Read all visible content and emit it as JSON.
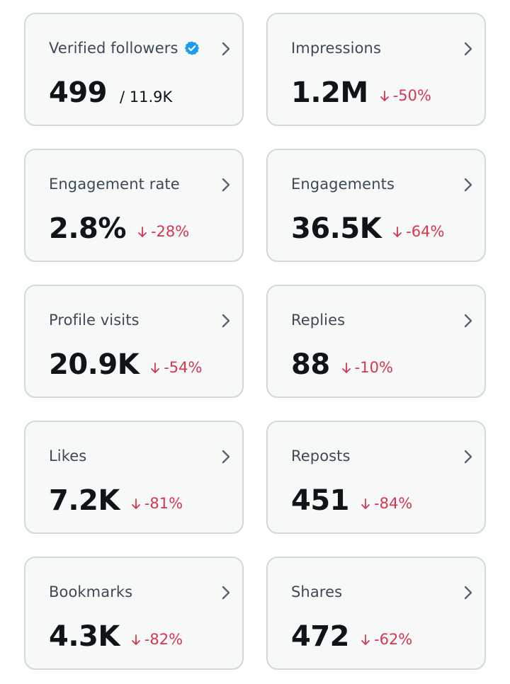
{
  "colors": {
    "card_bg": "#f7f9f9",
    "card_border": "#cfd9de",
    "label": "#3c4a55",
    "value": "#0f1419",
    "negative": "#d63650",
    "verified": "#1d9bf0",
    "chevron": "#536471"
  },
  "cards": [
    {
      "label": "Verified followers",
      "icon": "verified-badge-icon",
      "value": "499",
      "total": "/ 11.9K"
    },
    {
      "label": "Impressions",
      "value": "1.2M",
      "change": "-50%",
      "change_icon": "arrow-down-icon"
    },
    {
      "label": "Engagement rate",
      "value": "2.8%",
      "change": "-28%",
      "change_icon": "arrow-down-icon"
    },
    {
      "label": "Engagements",
      "value": "36.5K",
      "change": "-64%",
      "change_icon": "arrow-down-icon"
    },
    {
      "label": "Profile visits",
      "value": "20.9K",
      "change": "-54%",
      "change_icon": "arrow-down-icon"
    },
    {
      "label": "Replies",
      "value": "88",
      "change": "-10%",
      "change_icon": "arrow-down-icon"
    },
    {
      "label": "Likes",
      "value": "7.2K",
      "change": "-81%",
      "change_icon": "arrow-down-icon"
    },
    {
      "label": "Reposts",
      "value": "451",
      "change": "-84%",
      "change_icon": "arrow-down-icon"
    },
    {
      "label": "Bookmarks",
      "value": "4.3K",
      "change": "-82%",
      "change_icon": "arrow-down-icon"
    },
    {
      "label": "Shares",
      "value": "472",
      "change": "-62%",
      "change_icon": "arrow-down-icon"
    }
  ]
}
